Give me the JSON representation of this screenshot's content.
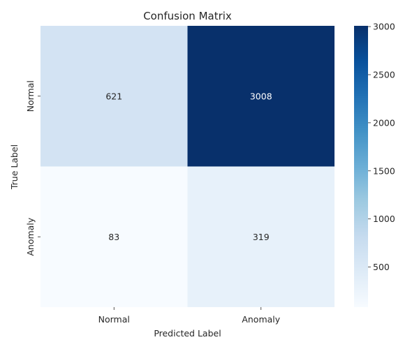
{
  "chart_data": {
    "type": "heatmap",
    "title": "Confusion Matrix",
    "xlabel": "Predicted Label",
    "ylabel": "True Label",
    "x_categories": [
      "Normal",
      "Anomaly"
    ],
    "y_categories": [
      "Normal",
      "Anomaly"
    ],
    "values": [
      [
        621,
        3008
      ],
      [
        83,
        319
      ]
    ],
    "colormap": "Blues",
    "colorbar": {
      "vmin": 83,
      "vmax": 3008,
      "ticks": [
        500,
        1000,
        1500,
        2000,
        2500,
        3000
      ]
    },
    "grid": false,
    "legend": "colorbar-right"
  }
}
